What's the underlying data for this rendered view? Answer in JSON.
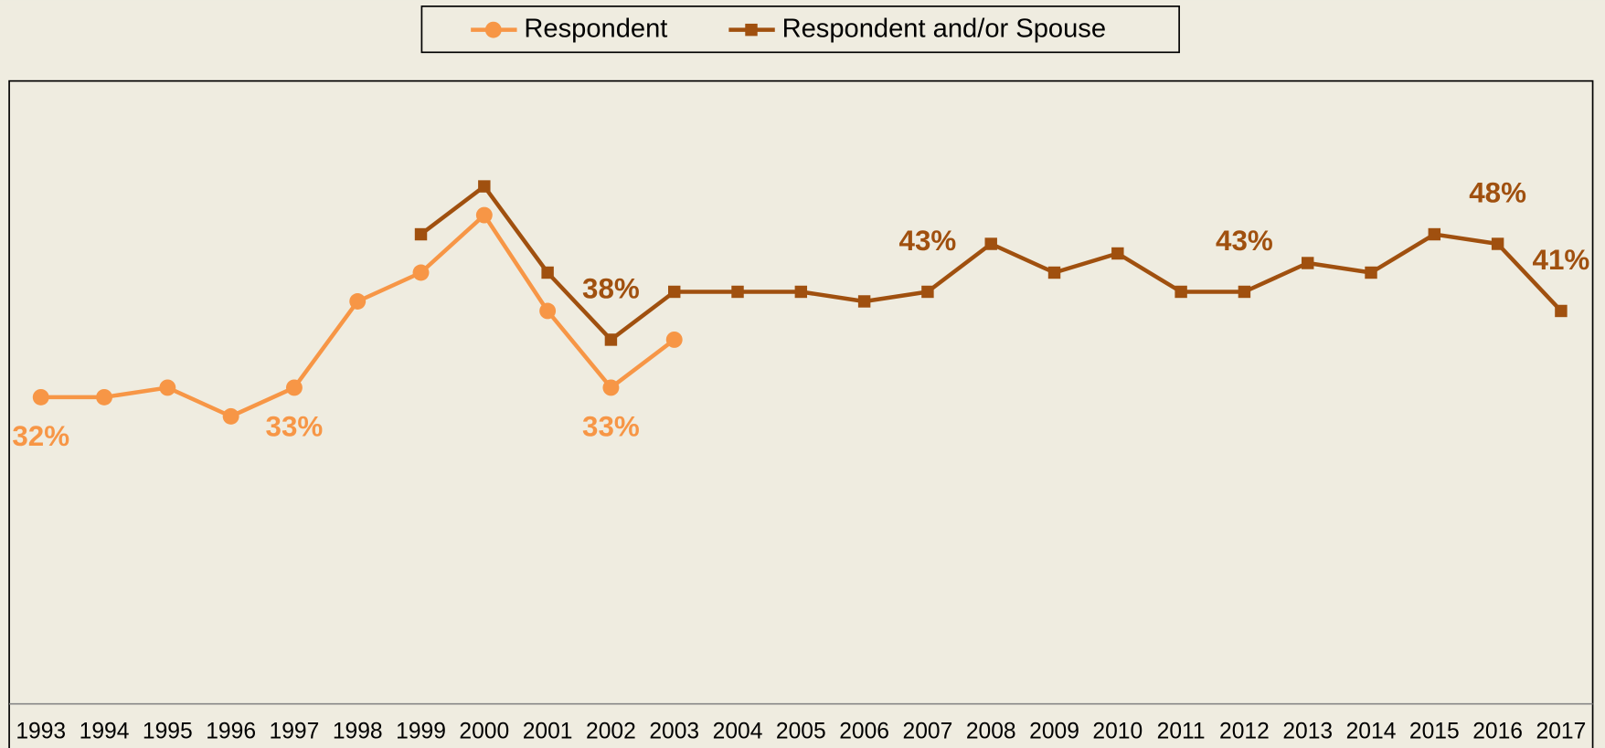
{
  "chart_data": {
    "type": "line",
    "categories": [
      "1993",
      "1994",
      "1995",
      "1996",
      "1997",
      "1998",
      "1999",
      "2000",
      "2001",
      "2002",
      "2003",
      "2004",
      "2005",
      "2006",
      "2007",
      "2008",
      "2009",
      "2010",
      "2011",
      "2012",
      "2013",
      "2014",
      "2015",
      "2016",
      "2017"
    ],
    "series": [
      {
        "name": "Respondent",
        "color": "#f79646",
        "marker": "circle",
        "values": [
          32,
          32,
          33,
          30,
          33,
          42,
          45,
          51,
          41,
          33,
          38,
          null,
          null,
          null,
          null,
          null,
          null,
          null,
          null,
          null,
          null,
          null,
          null,
          null,
          null
        ],
        "value_labels": [
          "32%",
          null,
          null,
          null,
          "33%",
          null,
          null,
          null,
          null,
          "33%",
          null,
          null,
          null,
          null,
          null,
          null,
          null,
          null,
          null,
          null,
          null,
          null,
          null,
          null,
          null
        ]
      },
      {
        "name": "Respondent and/or Spouse",
        "color": "#a0500f",
        "marker": "square",
        "values": [
          null,
          null,
          null,
          null,
          null,
          null,
          49,
          54,
          45,
          38,
          43,
          43,
          43,
          42,
          43,
          48,
          45,
          47,
          43,
          43,
          46,
          45,
          49,
          48,
          41
        ],
        "value_labels": [
          null,
          null,
          null,
          null,
          null,
          null,
          null,
          null,
          null,
          "38%",
          null,
          null,
          null,
          null,
          "43%",
          null,
          null,
          null,
          null,
          "43%",
          null,
          null,
          null,
          "48%",
          "41%"
        ]
      }
    ],
    "ylim": [
      0,
      65
    ],
    "legend": "top"
  }
}
